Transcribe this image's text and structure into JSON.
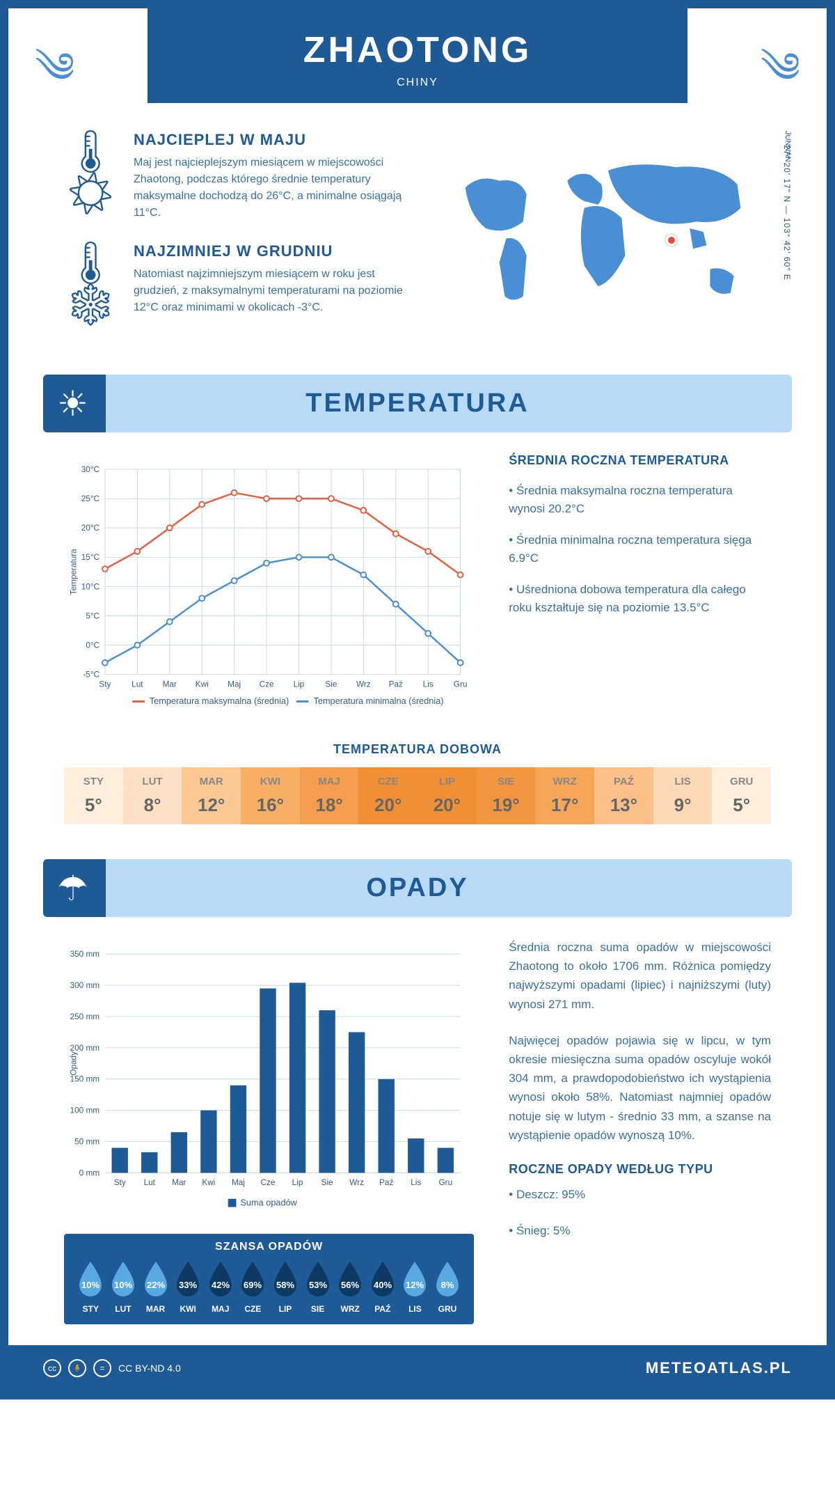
{
  "header": {
    "city": "ZHAOTONG",
    "country": "CHINY"
  },
  "map": {
    "region": "JUNNAN",
    "coords": "27° 20' 17\" N — 103° 42' 60\" E",
    "marker_color": "#e74c3c",
    "land_color": "#4a8fd4"
  },
  "facts": {
    "warmest": {
      "title": "NAJCIEPLEJ W MAJU",
      "text": "Maj jest najcieplejszym miesiącem w miejscowości Zhaotong, podczas którego średnie temperatury maksymalne dochodzą do 26°C, a minimalne osiągają 11°C."
    },
    "coldest": {
      "title": "NAJZIMNIEJ W GRUDNIU",
      "text": "Natomiast najzimniejszym miesiącem w roku jest grudzień, z maksymalnymi temperaturami na poziomie 12°C oraz minimami w okolicach -3°C."
    }
  },
  "temperature": {
    "banner": "TEMPERATURA",
    "chart": {
      "type": "line",
      "months": [
        "Sty",
        "Lut",
        "Mar",
        "Kwi",
        "Maj",
        "Cze",
        "Lip",
        "Sie",
        "Wrz",
        "Paź",
        "Lis",
        "Gru"
      ],
      "max_series": {
        "label": "Temperatura maksymalna (średnia)",
        "color": "#e85d3d",
        "values": [
          13,
          16,
          20,
          24,
          26,
          25,
          25,
          25,
          23,
          19,
          16,
          12
        ]
      },
      "min_series": {
        "label": "Temperatura minimalna (średnia)",
        "color": "#4a8fd4",
        "values": [
          -3,
          0,
          4,
          8,
          11,
          14,
          15,
          15,
          12,
          7,
          2,
          -3
        ]
      },
      "ylim": [
        -5,
        30
      ],
      "ytick_step": 5,
      "ylabel": "Temperatura",
      "grid_color": "#c8d8e8",
      "background_color": "#ffffff",
      "label_fontsize": 12
    },
    "stats": {
      "title": "ŚREDNIA ROCZNA TEMPERATURA",
      "bullets": [
        "• Średnia maksymalna roczna temperatura wynosi 20.2°C",
        "• Średnia minimalna roczna temperatura sięga 6.9°C",
        "• Uśredniona dobowa temperatura dla całego roku kształtuje się na poziomie 13.5°C"
      ]
    },
    "daily": {
      "title": "TEMPERATURA DOBOWA",
      "months": [
        "STY",
        "LUT",
        "MAR",
        "KWI",
        "MAJ",
        "CZE",
        "LIP",
        "SIE",
        "WRZ",
        "PAŹ",
        "LIS",
        "GRU"
      ],
      "values": [
        "5°",
        "8°",
        "12°",
        "16°",
        "18°",
        "20°",
        "20°",
        "19°",
        "17°",
        "13°",
        "9°",
        "5°"
      ],
      "colors": [
        "#fdeedd",
        "#fce0c3",
        "#fbc893",
        "#f7ae65",
        "#f49d4c",
        "#f28e34",
        "#f28e34",
        "#f3953f",
        "#f6a657",
        "#fac088",
        "#fcd9b4",
        "#fdeedd"
      ]
    }
  },
  "precip": {
    "banner": "OPADY",
    "chart": {
      "type": "bar",
      "months": [
        "Sty",
        "Lut",
        "Mar",
        "Kwi",
        "Maj",
        "Cze",
        "Lip",
        "Sie",
        "Wrz",
        "Paź",
        "Lis",
        "Gru"
      ],
      "values": [
        40,
        33,
        65,
        100,
        140,
        295,
        304,
        260,
        225,
        150,
        55,
        40
      ],
      "bar_color": "#1e5a96",
      "ylim": [
        0,
        350
      ],
      "ytick_step": 50,
      "ylabel": "Opady",
      "legend": "Suma opadów",
      "grid_color": "#c8d8e8",
      "label_fontsize": 12
    },
    "text": {
      "p1": "Średnia roczna suma opadów w miejscowości Zhaotong to około 1706 mm. Różnica pomiędzy najwyższymi opadami (lipiec) i najniższymi (luty) wynosi 271 mm.",
      "p2": "Najwięcej opadów pojawia się w lipcu, w tym okresie miesięczna suma opadów oscyluje wokół 304 mm, a prawdopodobieństwo ich wystąpienia wynosi około 58%. Natomiast najmniej opadów notuje się w lutym - średnio 33 mm, a szanse na wystąpienie opadów wynoszą 10%."
    },
    "by_type": {
      "title": "ROCZNE OPADY WEDŁUG TYPU",
      "rain": "• Deszcz: 95%",
      "snow": "• Śnieg: 5%"
    },
    "chance": {
      "title": "SZANSA OPADÓW",
      "months": [
        "STY",
        "LUT",
        "MAR",
        "KWI",
        "MAJ",
        "CZE",
        "LIP",
        "SIE",
        "WRZ",
        "PAŹ",
        "LIS",
        "GRU"
      ],
      "values": [
        "10%",
        "10%",
        "22%",
        "33%",
        "42%",
        "69%",
        "58%",
        "53%",
        "56%",
        "40%",
        "12%",
        "8%"
      ],
      "light_color": "#5aa8e0",
      "dark_color": "#0d3a63"
    }
  },
  "footer": {
    "license": "CC BY-ND 4.0",
    "brand": "METEOATLAS.PL"
  }
}
